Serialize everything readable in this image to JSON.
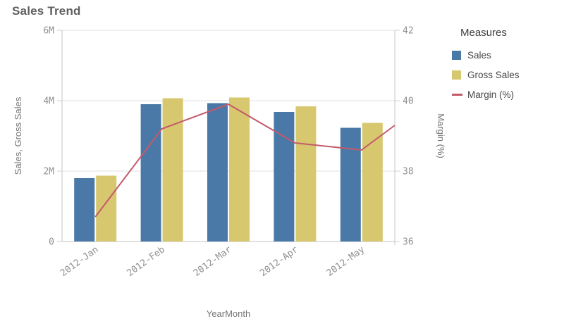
{
  "title": "Sales Trend",
  "legend": {
    "title": "Measures",
    "items": [
      {
        "label": "Sales",
        "swatch": "square",
        "color": "#4a79a7"
      },
      {
        "label": "Gross Sales",
        "swatch": "square",
        "color": "#d7c76f"
      },
      {
        "label": "Margin (%)",
        "swatch": "line",
        "color": "#c35a6b"
      }
    ]
  },
  "chart_data": {
    "type": "combo",
    "title": "Sales Trend",
    "categories": [
      "2012-Jan",
      "2012-Feb",
      "2012-Mar",
      "2012-Apr",
      "2012-May"
    ],
    "series": [
      {
        "name": "Sales",
        "type": "bar",
        "axis": "left",
        "color": "#4a79a7",
        "values": [
          1800000,
          3900000,
          3930000,
          3680000,
          3230000
        ]
      },
      {
        "name": "Gross Sales",
        "type": "bar",
        "axis": "left",
        "color": "#d7c76f",
        "values": [
          1870000,
          4070000,
          4090000,
          3840000,
          3370000
        ]
      },
      {
        "name": "Margin (%)",
        "type": "line",
        "axis": "right",
        "color": "#c35a6b",
        "values": [
          36.7,
          39.2,
          39.9,
          38.8,
          38.6
        ],
        "continues_to_edge_value": 39.3
      }
    ],
    "x_axis": {
      "title": "YearMonth"
    },
    "left_axis": {
      "title": "Sales, Gross Sales",
      "range": [
        0,
        6000000
      ],
      "ticks": [
        0,
        2000000,
        4000000,
        6000000
      ],
      "tick_labels": [
        "0",
        "2M",
        "4M",
        "6M"
      ]
    },
    "right_axis": {
      "title": "Margin (%)",
      "range": [
        36,
        42
      ],
      "ticks": [
        36,
        38,
        40,
        42
      ],
      "tick_labels": [
        "36",
        "38",
        "40",
        "42"
      ]
    },
    "grid": true,
    "legend_position": "right"
  }
}
